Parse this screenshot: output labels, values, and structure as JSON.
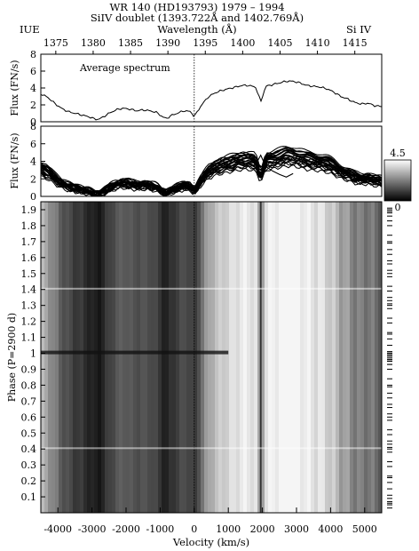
{
  "chart_data": {
    "type": "heatmap",
    "header": {
      "title": "WR 140 (HD193793)  1979 – 1994",
      "subtitle": "SiIV doublet (1393.722Å and 1402.769Å)",
      "left_label": "IUE",
      "right_label": "Si IV",
      "top_axis_label": "Wavelength (Å)"
    },
    "wavelength_ticks": [
      1375,
      1380,
      1385,
      1390,
      1395,
      1400,
      1405,
      1410,
      1415
    ],
    "wavelength_range": [
      1373.0,
      1418.6
    ],
    "velocity_range": [
      -4500,
      5500
    ],
    "velocity_ticks": [
      -4000,
      -3000,
      -2000,
      -1000,
      0,
      1000,
      2000,
      3000,
      4000,
      5000
    ],
    "xlabel": "Velocity (km/s)",
    "avg_panel": {
      "label": "Average spectrum",
      "ylabel": "Flux (FN/s)",
      "ylim": [
        0,
        8
      ],
      "yticks": [
        0,
        2,
        4,
        6,
        8
      ],
      "velocity": [
        -4500,
        -4300,
        -4100,
        -3900,
        -3700,
        -3500,
        -3300,
        -3100,
        -2900,
        -2800,
        -2700,
        -2500,
        -2300,
        -2100,
        -1900,
        -1700,
        -1500,
        -1300,
        -1100,
        -900,
        -800,
        -700,
        -500,
        -300,
        -100,
        0,
        200,
        400,
        600,
        800,
        1000,
        1200,
        1400,
        1600,
        1800,
        1900,
        1950,
        2000,
        2100,
        2300,
        2500,
        2700,
        2900,
        3100,
        3300,
        3500,
        3700,
        3900,
        4100,
        4300,
        4500,
        4700,
        4900,
        5100,
        5300,
        5500
      ],
      "flux": [
        3.3,
        2.9,
        2.2,
        1.6,
        1.2,
        1.0,
        0.8,
        0.6,
        0.3,
        0.3,
        0.5,
        1.0,
        1.4,
        1.6,
        1.5,
        1.3,
        1.4,
        1.3,
        1.1,
        0.5,
        0.4,
        0.7,
        1.0,
        1.3,
        1.2,
        0.6,
        1.9,
        2.9,
        3.4,
        3.7,
        3.9,
        4.1,
        4.3,
        4.3,
        4.1,
        3.0,
        2.3,
        3.0,
        4.2,
        4.4,
        4.6,
        4.8,
        4.8,
        4.6,
        4.3,
        4.2,
        4.1,
        3.9,
        3.5,
        3.0,
        2.7,
        2.3,
        2.1,
        2.2,
        1.9,
        1.8
      ]
    },
    "individual_panel": {
      "ylabel": "Flux (FN/s)",
      "ylim": [
        0,
        8
      ],
      "yticks": [
        0,
        2,
        4,
        6,
        8
      ],
      "spectrum_count": 26,
      "outlier_curve": {
        "velocity": [
          1600,
          1800,
          1950,
          2100,
          2300,
          2500,
          2700,
          2900
        ],
        "flux": [
          3.4,
          3.6,
          4.7,
          3.4,
          2.9,
          2.5,
          2.2,
          2.6
        ]
      }
    },
    "colorbar": {
      "max_label": "4.5",
      "min_label": "0",
      "range": [
        0,
        4.5
      ]
    },
    "phase_panel": {
      "ylabel": "Phase (P=2900 d)",
      "ylim": [
        0.0,
        1.95
      ],
      "yticks": [
        0.1,
        0.2,
        0.3,
        0.4,
        0.5,
        0.6,
        0.7,
        0.8,
        0.9,
        1.0,
        1.1,
        1.2,
        1.3,
        1.4,
        1.5,
        1.6,
        1.7,
        1.8,
        1.9
      ],
      "observation_phases": [
        0.03,
        0.05,
        0.06,
        0.07,
        0.09,
        0.11,
        0.15,
        0.19,
        0.22,
        0.23,
        0.29,
        0.32,
        0.38,
        0.4,
        0.41,
        0.43,
        0.45,
        0.49,
        0.52,
        0.58,
        0.6,
        0.62,
        0.66,
        0.68,
        0.72,
        0.75,
        0.79,
        0.8,
        0.84,
        0.9,
        0.93,
        0.96,
        0.98,
        0.99,
        1.0,
        1.01
      ]
    }
  }
}
